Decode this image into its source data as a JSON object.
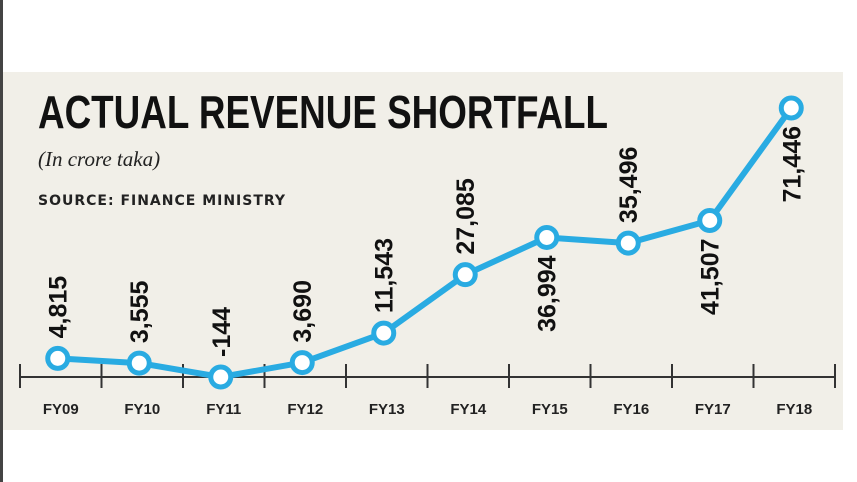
{
  "chart_data": {
    "type": "line",
    "title": "ACTUAL REVENUE SHORTFALL",
    "subtitle": "(In crore taka)",
    "source": "SOURCE: FINANCE MINISTRY",
    "categories": [
      "FY09",
      "FY10",
      "FY11",
      "FY12",
      "FY13",
      "FY14",
      "FY15",
      "FY16",
      "FY17",
      "FY18"
    ],
    "values": [
      4815,
      3555,
      -144,
      3690,
      11543,
      27085,
      36994,
      35496,
      41507,
      71446
    ],
    "value_labels": [
      "4,815",
      "3,555",
      "-144",
      "3,690",
      "11,543",
      "27,085",
      "36,994",
      "35,496",
      "41,507",
      "71,446"
    ],
    "color": "#29abe2"
  }
}
